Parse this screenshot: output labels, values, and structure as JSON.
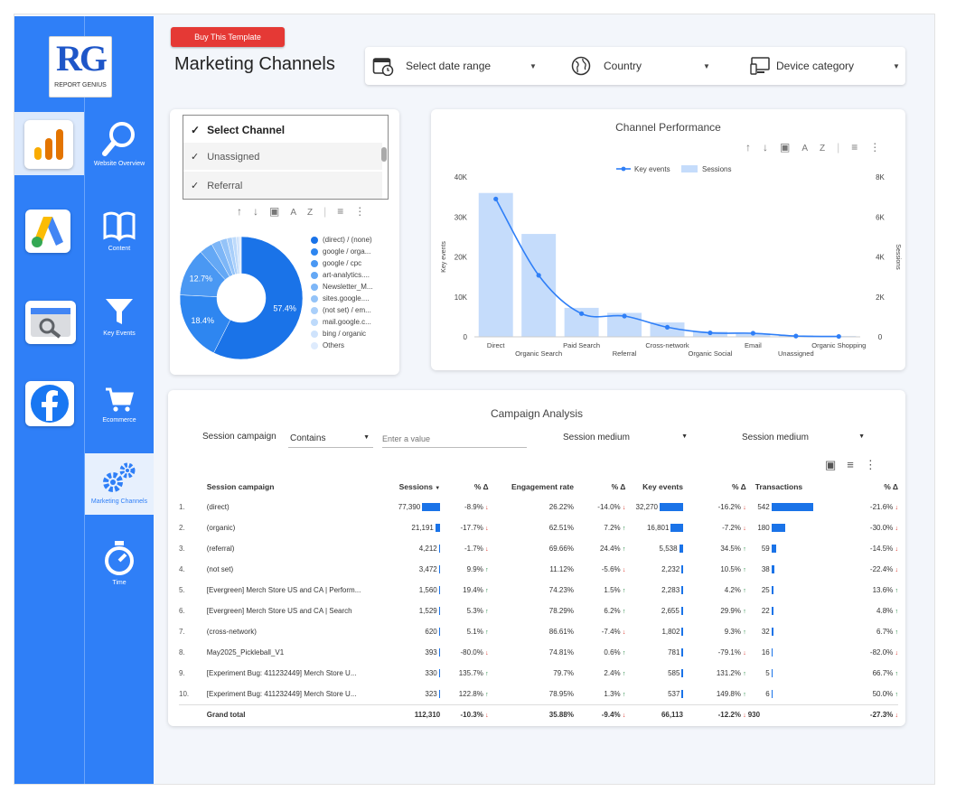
{
  "logo": {
    "letters": "RG",
    "name": "REPORT GENIUS"
  },
  "apps": [
    {
      "name": "analytics-icon"
    },
    {
      "name": "ads-icon"
    },
    {
      "name": "search-console-icon"
    },
    {
      "name": "facebook-icon"
    }
  ],
  "nav": {
    "items": [
      {
        "label": "Website Overview",
        "icon": "magnifier-icon"
      },
      {
        "label": "Content",
        "icon": "book-icon"
      },
      {
        "label": "Key Events",
        "icon": "funnel-icon"
      },
      {
        "label": "Ecommerce",
        "icon": "cart-icon"
      },
      {
        "label": "Marketing Channels",
        "icon": "gears-icon"
      },
      {
        "label": "Time",
        "icon": "stopwatch-icon"
      }
    ],
    "active": "Marketing Channels"
  },
  "header": {
    "buy_label": "Buy This Template",
    "title": "Marketing Channels",
    "date_placeholder": "Select date range",
    "country_label": "Country",
    "device_label": "Device category"
  },
  "channel_selector": {
    "title": "Select Channel",
    "options": [
      "Unassigned",
      "Referral"
    ]
  },
  "pie": {
    "chart_data": {
      "type": "pie",
      "labels_shown": [
        "57.4%",
        "18.4%",
        "12.7%"
      ],
      "slices": [
        {
          "name": "(direct) / (none)",
          "value": 57.4,
          "color": "#1a73e8"
        },
        {
          "name": "google / orga...",
          "value": 18.4,
          "color": "#2e86f0"
        },
        {
          "name": "google / cpc",
          "value": 12.7,
          "color": "#4a98f3"
        },
        {
          "name": "art-analytics....",
          "value": 3.5,
          "color": "#64a8f5"
        },
        {
          "name": "Newsletter_M...",
          "value": 2.4,
          "color": "#7db6f7"
        },
        {
          "name": "sites.google....",
          "value": 1.8,
          "color": "#94c3f8"
        },
        {
          "name": "(not set) / em...",
          "value": 1.4,
          "color": "#a9cffa"
        },
        {
          "name": "mail.google.c...",
          "value": 1.1,
          "color": "#bddafb"
        },
        {
          "name": "bing / organic",
          "value": 0.8,
          "color": "#cfe3fc"
        },
        {
          "name": "Others",
          "value": 0.5,
          "color": "#deebfd"
        }
      ]
    }
  },
  "channel_perf": {
    "title": "Channel Performance",
    "chart_data": {
      "type": "bar",
      "categories": [
        "Direct",
        "Organic Search",
        "Paid Search",
        "Referral",
        "Cross-network",
        "Organic Social",
        "Email",
        "Unassigned",
        "Organic Shopping"
      ],
      "series": [
        {
          "name": "Key events",
          "kind": "line",
          "axis": "left",
          "values": [
            34500,
            15400,
            5800,
            5200,
            2400,
            1000,
            900,
            200,
            100
          ]
        },
        {
          "name": "Sessions",
          "kind": "bar",
          "axis": "right",
          "values": [
            7200,
            5150,
            1450,
            1200,
            720,
            260,
            170,
            70,
            40
          ]
        }
      ],
      "ylabel": "Key events",
      "ylabel_right": "Sessions",
      "yticks_left": [
        "0",
        "10K",
        "20K",
        "30K",
        "40K"
      ],
      "yticks_right": [
        "0",
        "2K",
        "4K",
        "6K",
        "8K"
      ],
      "ylim": [
        0,
        40000
      ],
      "ylim_right": [
        0,
        8000
      ],
      "legend": "top-center"
    }
  },
  "campaign": {
    "title": "Campaign Analysis",
    "filter_field": "Session campaign",
    "operator": "Contains",
    "value_placeholder": "Enter a value",
    "medium1": "Session medium",
    "medium2": "Session medium",
    "columns": [
      "Session campaign",
      "Sessions",
      "% Δ",
      "Engagement rate",
      "% Δ",
      "Key events",
      "% Δ",
      "Transactions",
      "% Δ"
    ],
    "sort_indicator": "▼",
    "rows": [
      {
        "n": "1.",
        "name": "(direct)",
        "sessions": "77,390",
        "s_bar": 1.0,
        "s_d": "-8.9%",
        "s_u": false,
        "er": "26.22%",
        "er_d": "-14.0%",
        "er_u": false,
        "ke": "32,270",
        "ke_bar": 1.0,
        "ke_d": "-16.2%",
        "ke_u": false,
        "tr": "542",
        "tr_bar": 1.0,
        "tr_d": "-21.6%",
        "tr_u": false
      },
      {
        "n": "2.",
        "name": "(organic)",
        "sessions": "21,191",
        "s_bar": 0.27,
        "s_d": "-17.7%",
        "s_u": false,
        "er": "62.51%",
        "er_d": "7.2%",
        "er_u": true,
        "ke": "16,801",
        "ke_bar": 0.52,
        "ke_d": "-7.2%",
        "ke_u": false,
        "tr": "180",
        "tr_bar": 0.33,
        "tr_d": "-30.0%",
        "tr_u": false
      },
      {
        "n": "3.",
        "name": "(referral)",
        "sessions": "4,212",
        "s_bar": 0.054,
        "s_d": "-1.7%",
        "s_u": false,
        "er": "69.66%",
        "er_d": "24.4%",
        "er_u": true,
        "ke": "5,538",
        "ke_bar": 0.17,
        "ke_d": "34.5%",
        "ke_u": true,
        "tr": "59",
        "tr_bar": 0.11,
        "tr_d": "-14.5%",
        "tr_u": false
      },
      {
        "n": "4.",
        "name": "(not set)",
        "sessions": "3,472",
        "s_bar": 0.045,
        "s_d": "9.9%",
        "s_u": true,
        "er": "11.12%",
        "er_d": "-5.6%",
        "er_u": false,
        "ke": "2,232",
        "ke_bar": 0.069,
        "ke_d": "10.5%",
        "ke_u": true,
        "tr": "38",
        "tr_bar": 0.07,
        "tr_d": "-22.4%",
        "tr_u": false
      },
      {
        "n": "5.",
        "name": "[Evergreen] Merch Store US and CA | Perform...",
        "sessions": "1,560",
        "s_bar": 0.02,
        "s_d": "19.4%",
        "s_u": true,
        "er": "74.23%",
        "er_d": "1.5%",
        "er_u": true,
        "ke": "2,283",
        "ke_bar": 0.07,
        "ke_d": "4.2%",
        "ke_u": true,
        "tr": "25",
        "tr_bar": 0.046,
        "tr_d": "13.6%",
        "tr_u": true
      },
      {
        "n": "6.",
        "name": "[Evergreen] Merch Store US and CA | Search",
        "sessions": "1,529",
        "s_bar": 0.02,
        "s_d": "5.3%",
        "s_u": true,
        "er": "78.29%",
        "er_d": "6.2%",
        "er_u": true,
        "ke": "2,655",
        "ke_bar": 0.082,
        "ke_d": "29.9%",
        "ke_u": true,
        "tr": "22",
        "tr_bar": 0.04,
        "tr_d": "4.8%",
        "tr_u": true
      },
      {
        "n": "7.",
        "name": "(cross-network)",
        "sessions": "620",
        "s_bar": 0.008,
        "s_d": "5.1%",
        "s_u": true,
        "er": "86.61%",
        "er_d": "-7.4%",
        "er_u": false,
        "ke": "1,802",
        "ke_bar": 0.056,
        "ke_d": "9.3%",
        "ke_u": true,
        "tr": "32",
        "tr_bar": 0.059,
        "tr_d": "6.7%",
        "tr_u": true
      },
      {
        "n": "8.",
        "name": "May2025_Pickleball_V1",
        "sessions": "393",
        "s_bar": 0.005,
        "s_d": "-80.0%",
        "s_u": false,
        "er": "74.81%",
        "er_d": "0.6%",
        "er_u": true,
        "ke": "781",
        "ke_bar": 0.024,
        "ke_d": "-79.1%",
        "ke_u": false,
        "tr": "16",
        "tr_bar": 0.03,
        "tr_d": "-82.0%",
        "tr_u": false
      },
      {
        "n": "9.",
        "name": "[Experiment Bug: 411232449] Merch Store U...",
        "sessions": "330",
        "s_bar": 0.004,
        "s_d": "135.7%",
        "s_u": true,
        "er": "79.7%",
        "er_d": "2.4%",
        "er_u": true,
        "ke": "585",
        "ke_bar": 0.018,
        "ke_d": "131.2%",
        "ke_u": true,
        "tr": "5",
        "tr_bar": 0.009,
        "tr_d": "66.7%",
        "tr_u": true
      },
      {
        "n": "10.",
        "name": "[Experiment Bug: 411232449] Merch Store U...",
        "sessions": "323",
        "s_bar": 0.004,
        "s_d": "122.8%",
        "s_u": true,
        "er": "78.95%",
        "er_d": "1.3%",
        "er_u": true,
        "ke": "537",
        "ke_bar": 0.017,
        "ke_d": "149.8%",
        "ke_u": true,
        "tr": "6",
        "tr_bar": 0.011,
        "tr_d": "50.0%",
        "tr_u": true
      }
    ],
    "total": {
      "label": "Grand total",
      "sessions": "112,310",
      "s_d": "-10.3%",
      "er": "35.88%",
      "er_d": "-9.4%",
      "ke": "66,113",
      "ke_d": "-12.2%",
      "tr": "930",
      "tr_d": "-27.3%"
    }
  },
  "colors": {
    "rail": "#2f7ff7",
    "bar": "#1a73e8",
    "buy": "#e53935",
    "bar_light": "#c5dcfb",
    "line": "#2f7ff7"
  }
}
